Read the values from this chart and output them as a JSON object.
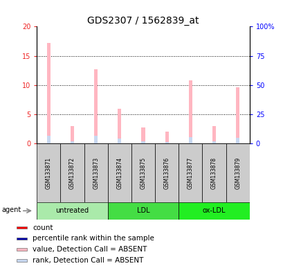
{
  "title": "GDS2307 / 1562839_at",
  "samples": [
    "GSM133871",
    "GSM133872",
    "GSM133873",
    "GSM133874",
    "GSM133875",
    "GSM133876",
    "GSM133877",
    "GSM133878",
    "GSM133879"
  ],
  "value_absent": [
    17.2,
    3.0,
    12.7,
    6.0,
    2.8,
    2.0,
    10.8,
    3.0,
    9.6
  ],
  "rank_absent": [
    6.8,
    1.8,
    6.5,
    4.5,
    2.2,
    1.5,
    5.6,
    2.1,
    5.2
  ],
  "groups": [
    {
      "label": "untreated",
      "start": 0,
      "end": 3,
      "color": "#AAEAAA"
    },
    {
      "label": "LDL",
      "start": 3,
      "end": 6,
      "color": "#44DD44"
    },
    {
      "label": "ox-LDL",
      "start": 6,
      "end": 9,
      "color": "#22EE22"
    }
  ],
  "ylim_left": [
    0,
    20
  ],
  "ylim_right": [
    0,
    100
  ],
  "yticks_left": [
    0,
    5,
    10,
    15,
    20
  ],
  "yticks_right": [
    0,
    25,
    50,
    75,
    100
  ],
  "ytick_labels_left": [
    "0",
    "5",
    "10",
    "15",
    "20"
  ],
  "ytick_labels_right": [
    "0",
    "25",
    "50",
    "75",
    "100%"
  ],
  "bar_width": 0.15,
  "color_value_absent": "#FFB6C1",
  "color_rank_absent": "#C8D8F0",
  "color_count": "#FF0000",
  "color_rank_present": "#0000AA",
  "legend_items": [
    {
      "label": "count",
      "color": "#FF0000"
    },
    {
      "label": "percentile rank within the sample",
      "color": "#0000AA"
    },
    {
      "label": "value, Detection Call = ABSENT",
      "color": "#FFB6C1"
    },
    {
      "label": "rank, Detection Call = ABSENT",
      "color": "#C8D8F0"
    }
  ],
  "agent_label": "agent",
  "title_fontsize": 10,
  "tick_fontsize": 7,
  "legend_fontsize": 7.5,
  "sample_box_color": "#CCCCCC",
  "group_colors": [
    "#AAEAAA",
    "#44DD44",
    "#22EE22"
  ]
}
